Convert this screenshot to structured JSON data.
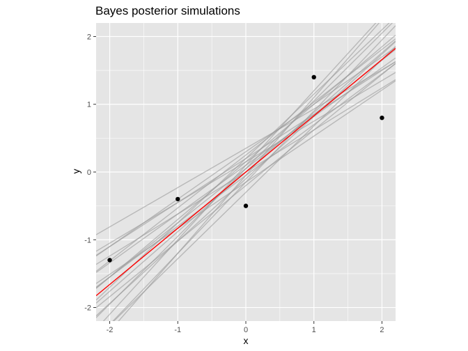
{
  "chart_data": {
    "type": "line",
    "title": "Bayes posterior simulations",
    "xlabel": "x",
    "ylabel": "y",
    "xlim": [
      -2.2,
      2.2
    ],
    "ylim": [
      -2.2,
      2.2
    ],
    "x_ticks": [
      -2,
      -1,
      0,
      1,
      2
    ],
    "y_ticks": [
      -2,
      -1,
      0,
      1,
      2
    ],
    "x_tick_labels": [
      "-2",
      "-1",
      "0",
      "1",
      "2"
    ],
    "y_tick_labels": [
      "-2",
      "-1",
      "0",
      "1",
      "2"
    ],
    "grid": true,
    "points": [
      {
        "x": -2,
        "y": -1.3
      },
      {
        "x": -1,
        "y": -0.4
      },
      {
        "x": 0,
        "y": -0.5
      },
      {
        "x": 1,
        "y": 1.4
      },
      {
        "x": 2,
        "y": 0.8
      }
    ],
    "fitted_line": {
      "intercept": 0.0,
      "slope": 0.83,
      "color": "#ff0000"
    },
    "posterior_lines": [
      {
        "intercept": -0.05,
        "slope": 1.15
      },
      {
        "intercept": 0.1,
        "slope": 1.1
      },
      {
        "intercept": -0.15,
        "slope": 1.05
      },
      {
        "intercept": 0.05,
        "slope": 1.0
      },
      {
        "intercept": 0.2,
        "slope": 0.95
      },
      {
        "intercept": -0.1,
        "slope": 0.92
      },
      {
        "intercept": 0.0,
        "slope": 0.88
      },
      {
        "intercept": 0.15,
        "slope": 0.85
      },
      {
        "intercept": -0.2,
        "slope": 0.82
      },
      {
        "intercept": 0.05,
        "slope": 0.8
      },
      {
        "intercept": 0.25,
        "slope": 0.78
      },
      {
        "intercept": -0.05,
        "slope": 0.75
      },
      {
        "intercept": 0.1,
        "slope": 0.72
      },
      {
        "intercept": 0.3,
        "slope": 0.7
      },
      {
        "intercept": -0.15,
        "slope": 0.68
      },
      {
        "intercept": 0.2,
        "slope": 0.65
      },
      {
        "intercept": 0.0,
        "slope": 0.62
      },
      {
        "intercept": 0.15,
        "slope": 0.6
      },
      {
        "intercept": 0.35,
        "slope": 0.58
      },
      {
        "intercept": -0.3,
        "slope": 0.98
      }
    ],
    "colors": {
      "panel_background": "#e5e5e5",
      "grid": "#ffffff",
      "posterior_line": "#999999",
      "point": "#000000",
      "fitted_line": "#ff0000"
    }
  }
}
